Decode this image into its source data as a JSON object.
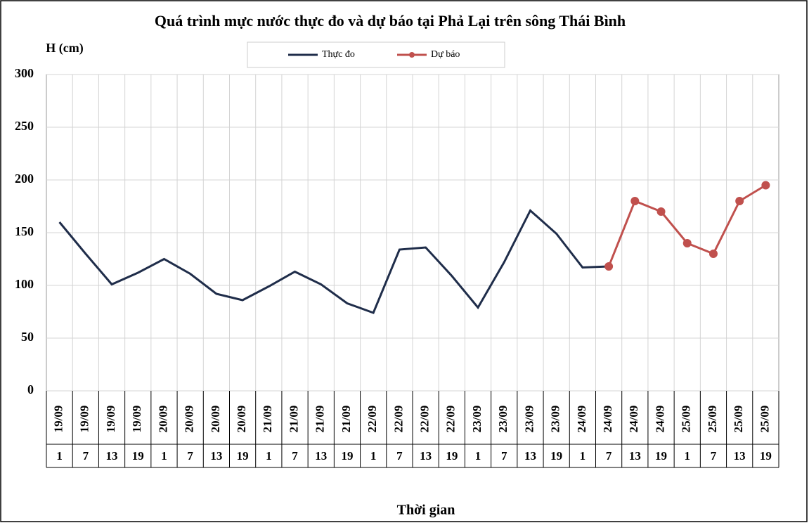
{
  "chart_data": {
    "type": "line",
    "title": "Quá trình mực nước thực đo và dự báo tại Phả Lại trên sông Thái Bình",
    "y_label": "H (cm)",
    "x_label": "Thời gian",
    "categories": [
      "19/09",
      "19/09",
      "19/09",
      "19/09",
      "20/09",
      "20/09",
      "20/09",
      "20/09",
      "21/09",
      "21/09",
      "21/09",
      "21/09",
      "22/09",
      "22/09",
      "22/09",
      "22/09",
      "23/09",
      "23/09",
      "23/09",
      "23/09",
      "24/09",
      "24/09",
      "24/09",
      "24/09",
      "25/09",
      "25/09",
      "25/09",
      "25/09"
    ],
    "hours": [
      1,
      7,
      13,
      19,
      1,
      7,
      13,
      19,
      1,
      7,
      13,
      19,
      1,
      7,
      13,
      19,
      1,
      7,
      13,
      19,
      1,
      7,
      13,
      19,
      1,
      7,
      13,
      19
    ],
    "series": [
      {
        "name": "Thực đo",
        "color": "#1f2d4a",
        "markers": false,
        "values": [
          160,
          130,
          101,
          112,
          125,
          111,
          92,
          86,
          99,
          113,
          101,
          83,
          74,
          134,
          136,
          109,
          79,
          122,
          171,
          149,
          117,
          118,
          null,
          null,
          null,
          null,
          null,
          null
        ]
      },
      {
        "name": "Dự báo",
        "color": "#c0504d",
        "markers": true,
        "values": [
          null,
          null,
          null,
          null,
          null,
          null,
          null,
          null,
          null,
          null,
          null,
          null,
          null,
          null,
          null,
          null,
          null,
          null,
          null,
          null,
          null,
          118,
          180,
          170,
          140,
          130,
          180,
          195
        ]
      }
    ],
    "ylim": [
      0,
      300
    ],
    "yticks": [
      0,
      50,
      100,
      150,
      200,
      250,
      300
    ],
    "grid": true,
    "legend": "top"
  }
}
